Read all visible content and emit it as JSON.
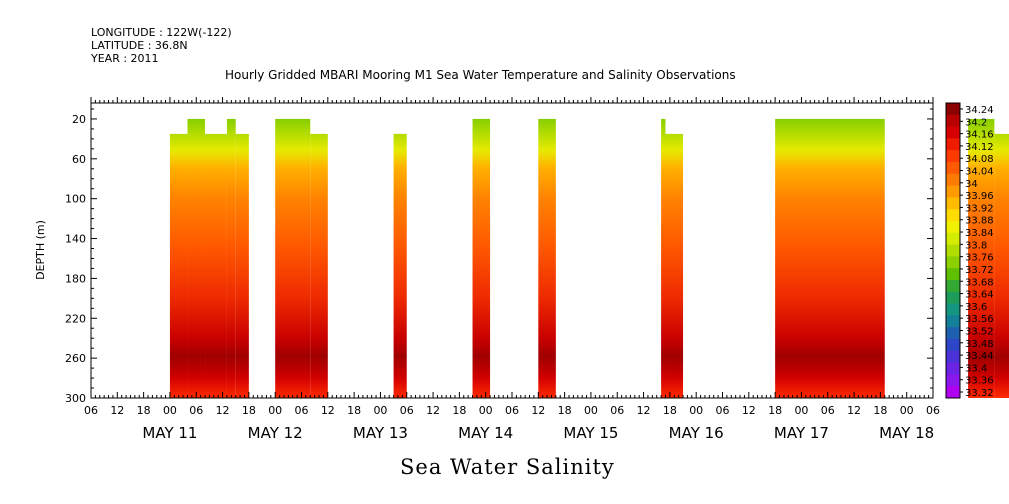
{
  "header": {
    "longitude": "LONGITUDE : 122W(-122)",
    "latitude": "LATITUDE : 36.8N",
    "year": "YEAR : 2011"
  },
  "chart_data": {
    "type": "heatmap",
    "title": "Hourly Gridded MBARI Mooring M1 Sea Water Temperature and Salinity Observations",
    "bottom_label": "Sea Water Salinity",
    "xlabel": "",
    "ylabel": "DEPTH (m)",
    "x_range_hours": [
      0,
      192
    ],
    "x_origin": "2011-05-10 18:00",
    "ylim": [
      300,
      4
    ],
    "y_ticks": [
      20,
      60,
      100,
      140,
      180,
      220,
      260,
      300
    ],
    "x_hour_labels": [
      "06",
      "12",
      "18",
      "00",
      "06",
      "12",
      "18",
      "00",
      "06",
      "12",
      "18",
      "00",
      "06",
      "12",
      "18",
      "00",
      "06",
      "12",
      "18",
      "00",
      "06",
      "12",
      "18",
      "00",
      "06",
      "12",
      "18",
      "00",
      "06",
      "12",
      "18",
      "00",
      "06"
    ],
    "x_day_labels": [
      "MAY 11",
      "MAY 12",
      "MAY 13",
      "MAY 14",
      "MAY 15",
      "MAY 16",
      "MAY 17",
      "MAY 18"
    ],
    "colorbar": {
      "labels": [
        "34.24",
        "34.2",
        "34.16",
        "34.12",
        "34.08",
        "34.04",
        "34",
        "33.96",
        "33.92",
        "33.88",
        "33.84",
        "33.8",
        "33.76",
        "33.72",
        "33.68",
        "33.64",
        "33.6",
        "33.56",
        "33.52",
        "33.48",
        "33.44",
        "33.4",
        "33.36",
        "33.32"
      ],
      "colors": [
        "#8b0000",
        "#b80000",
        "#d60000",
        "#ee1b00",
        "#ff3a00",
        "#ff5a00",
        "#ff7a00",
        "#ff9a00",
        "#ffbb00",
        "#ffdb00",
        "#f0f000",
        "#d4ec00",
        "#b2dd00",
        "#8cd000",
        "#5fc000",
        "#33a833",
        "#1e9c5a",
        "#14957f",
        "#128099",
        "#1e60b0",
        "#2d46c8",
        "#4a32d8",
        "#6a24e4",
        "#8a18ec",
        "#b000f0"
      ]
    },
    "blocks": [
      {
        "start": 18,
        "end": 22,
        "top": 35,
        "bottom": 300
      },
      {
        "start": 22,
        "end": 26,
        "top": 20,
        "bottom": 300
      },
      {
        "start": 26,
        "end": 31,
        "top": 35,
        "bottom": 300
      },
      {
        "start": 31,
        "end": 33,
        "top": 20,
        "bottom": 300
      },
      {
        "start": 33,
        "end": 36,
        "top": 35,
        "bottom": 300
      },
      {
        "start": 42,
        "end": 50,
        "top": 20,
        "bottom": 300
      },
      {
        "start": 50,
        "end": 54,
        "top": 35,
        "bottom": 300
      },
      {
        "start": 69,
        "end": 72,
        "top": 35,
        "bottom": 300
      },
      {
        "start": 87,
        "end": 91,
        "top": 20,
        "bottom": 300
      },
      {
        "start": 102,
        "end": 106,
        "top": 20,
        "bottom": 300
      },
      {
        "start": 130,
        "end": 131,
        "top": 20,
        "bottom": 300
      },
      {
        "start": 131,
        "end": 135,
        "top": 35,
        "bottom": 300
      },
      {
        "start": 156,
        "end": 181,
        "top": 20,
        "bottom": 300
      },
      {
        "start": 200,
        "end": 206,
        "top": 20,
        "bottom": 300
      },
      {
        "start": 206,
        "end": 211,
        "top": 35,
        "bottom": 300
      },
      {
        "start": 211,
        "end": 214,
        "top": 20,
        "bottom": 300
      },
      {
        "start": 234,
        "end": 240,
        "top": 20,
        "bottom": 300
      }
    ]
  }
}
